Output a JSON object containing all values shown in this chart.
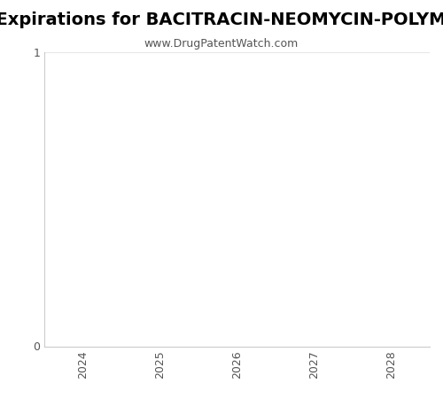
{
  "title": "Patent Expirations for BACITRACIN-NEOMYCIN-POLYMYXIN W",
  "subtitle": "www.DrugPatentWatch.com",
  "xlim": [
    2023.5,
    2028.5
  ],
  "ylim": [
    0,
    1
  ],
  "xticks": [
    2024,
    2025,
    2026,
    2027,
    2028
  ],
  "yticks": [
    0,
    1
  ],
  "background_color": "#ffffff",
  "plot_bg_color": "#ffffff",
  "title_fontsize": 14,
  "subtitle_fontsize": 9,
  "tick_fontsize": 9,
  "spine_color": "#cccccc",
  "grid_color": "#e8e8e8",
  "title_color": "#000000",
  "subtitle_color": "#555555",
  "tick_color": "#555555"
}
